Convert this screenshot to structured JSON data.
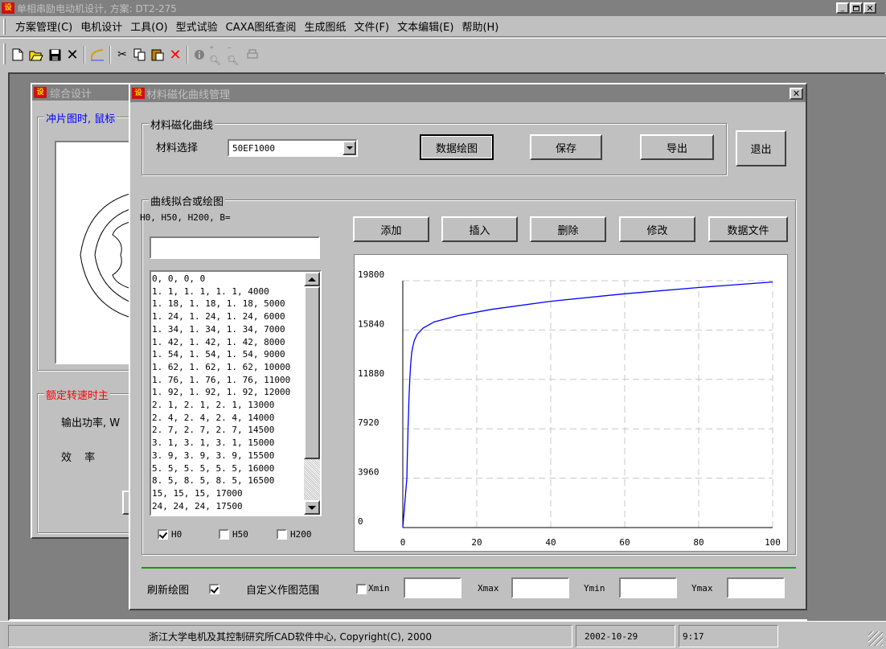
{
  "app": {
    "title": "单相串励电动机设计, 方案: DT2-275",
    "icon_text": "设"
  },
  "menu": [
    {
      "label": "方案管理(C)"
    },
    {
      "label": "电机设计"
    },
    {
      "label": "工具(O)"
    },
    {
      "label": "型式试验"
    },
    {
      "label": "CAXA图纸查阅"
    },
    {
      "label": "生成图纸"
    },
    {
      "label": "文件(F)"
    },
    {
      "label": "文本编辑(E)"
    },
    {
      "label": "帮助(H)"
    }
  ],
  "toolbar_icons": [
    "new-file-icon",
    "open-folder-icon",
    "save-icon",
    "close-x-icon",
    "draw-line-icon",
    "cut-icon",
    "copy-icon",
    "paste-icon",
    "delete-icon",
    "info-icon",
    "zoom-in-icon",
    "zoom-out-icon",
    "print-icon"
  ],
  "back_window": {
    "title": "综合设计",
    "group1_label": "冲片图时, 鼠标",
    "group2_label": "额定转速时主",
    "output_power_label": "输出功率, W",
    "efficiency_label": "效  率"
  },
  "dialog": {
    "title": "材料磁化曲线管理",
    "material_group": "材料磁化曲线",
    "material_select_label": "材料选择",
    "material_value": "50EF1000",
    "btn_plot": "数据绘图",
    "btn_save": "保存",
    "btn_export": "导出",
    "btn_exit": "退出",
    "curve_group": "曲线拟合或绘图",
    "format_label": "H0, H50, H200, B=",
    "entry_value": "",
    "btn_add": "添加",
    "btn_insert": "插入",
    "btn_delete": "删除",
    "btn_modify": "修改",
    "btn_datafile": "数据文件",
    "list_items": [
      "0, 0, 0, 0",
      "1. 1, 1. 1, 1. 1, 4000",
      "1. 18, 1. 18, 1. 18, 5000",
      "1. 24, 1. 24, 1. 24, 6000",
      "1. 34, 1. 34, 1. 34, 7000",
      "1. 42, 1. 42, 1. 42, 8000",
      "1. 54, 1. 54, 1. 54, 9000",
      "1. 62, 1. 62, 1. 62, 10000",
      "1. 76, 1. 76, 1. 76, 11000",
      "1. 92, 1. 92, 1. 92, 12000",
      "2. 1, 2. 1, 2. 1, 13000",
      "2. 4, 2. 4, 2. 4, 14000",
      "2. 7, 2. 7, 2. 7, 14500",
      "3. 1, 3. 1, 3. 1, 15000",
      "3. 9, 3. 9, 3. 9, 15500",
      "5. 5, 5. 5, 5. 5, 16000",
      "8. 5, 8. 5, 8. 5, 16500",
      "15, 15, 15, 17000",
      "24, 24, 24, 17500"
    ],
    "checkboxes": [
      {
        "label": "H0",
        "checked": true
      },
      {
        "label": "H50",
        "checked": false
      },
      {
        "label": "H200",
        "checked": false
      }
    ],
    "refresh_label": "刷新绘图",
    "refresh_checked": true,
    "custom_range_label": "自定义作图范围",
    "custom_range_checked": false,
    "xmin_label": "Xmin",
    "xmax_label": "Xmax",
    "ymin_label": "Ymin",
    "ymax_label": "Ymax",
    "xmin_value": "",
    "xmax_value": "",
    "ymin_value": "",
    "ymax_value": ""
  },
  "chart_data": {
    "type": "line",
    "xlim": [
      0,
      100
    ],
    "ylim": [
      0,
      19800
    ],
    "x_ticks": [
      0,
      20,
      40,
      60,
      80,
      100
    ],
    "y_ticks": [
      0,
      3960,
      7920,
      11880,
      15840,
      19800
    ],
    "grid": true,
    "line_color": "#0000ff",
    "series": [
      {
        "x": [
          0,
          1.1,
          1.18,
          1.24,
          1.34,
          1.42,
          1.54,
          1.62,
          1.76,
          1.92,
          2.1,
          2.4,
          2.7,
          3.1,
          3.9,
          5.5,
          8.5,
          15,
          24,
          40,
          60,
          80,
          100
        ],
        "y": [
          0,
          4000,
          5000,
          6000,
          7000,
          8000,
          9000,
          10000,
          11000,
          12000,
          13000,
          14000,
          14500,
          15000,
          15500,
          16000,
          16500,
          17000,
          17500,
          18150,
          18750,
          19250,
          19700
        ]
      }
    ]
  },
  "status": {
    "copyright": "浙江大学电机及其控制研究所CAD软件中心, Copyright(C), 2000",
    "date": "2002-10-29",
    "time": "9:17"
  },
  "colors": {
    "title_inactive": "#808080",
    "desktop_gray": "#808080",
    "group_label_blue": "#0000ff",
    "group_label_red": "#ff0000"
  }
}
